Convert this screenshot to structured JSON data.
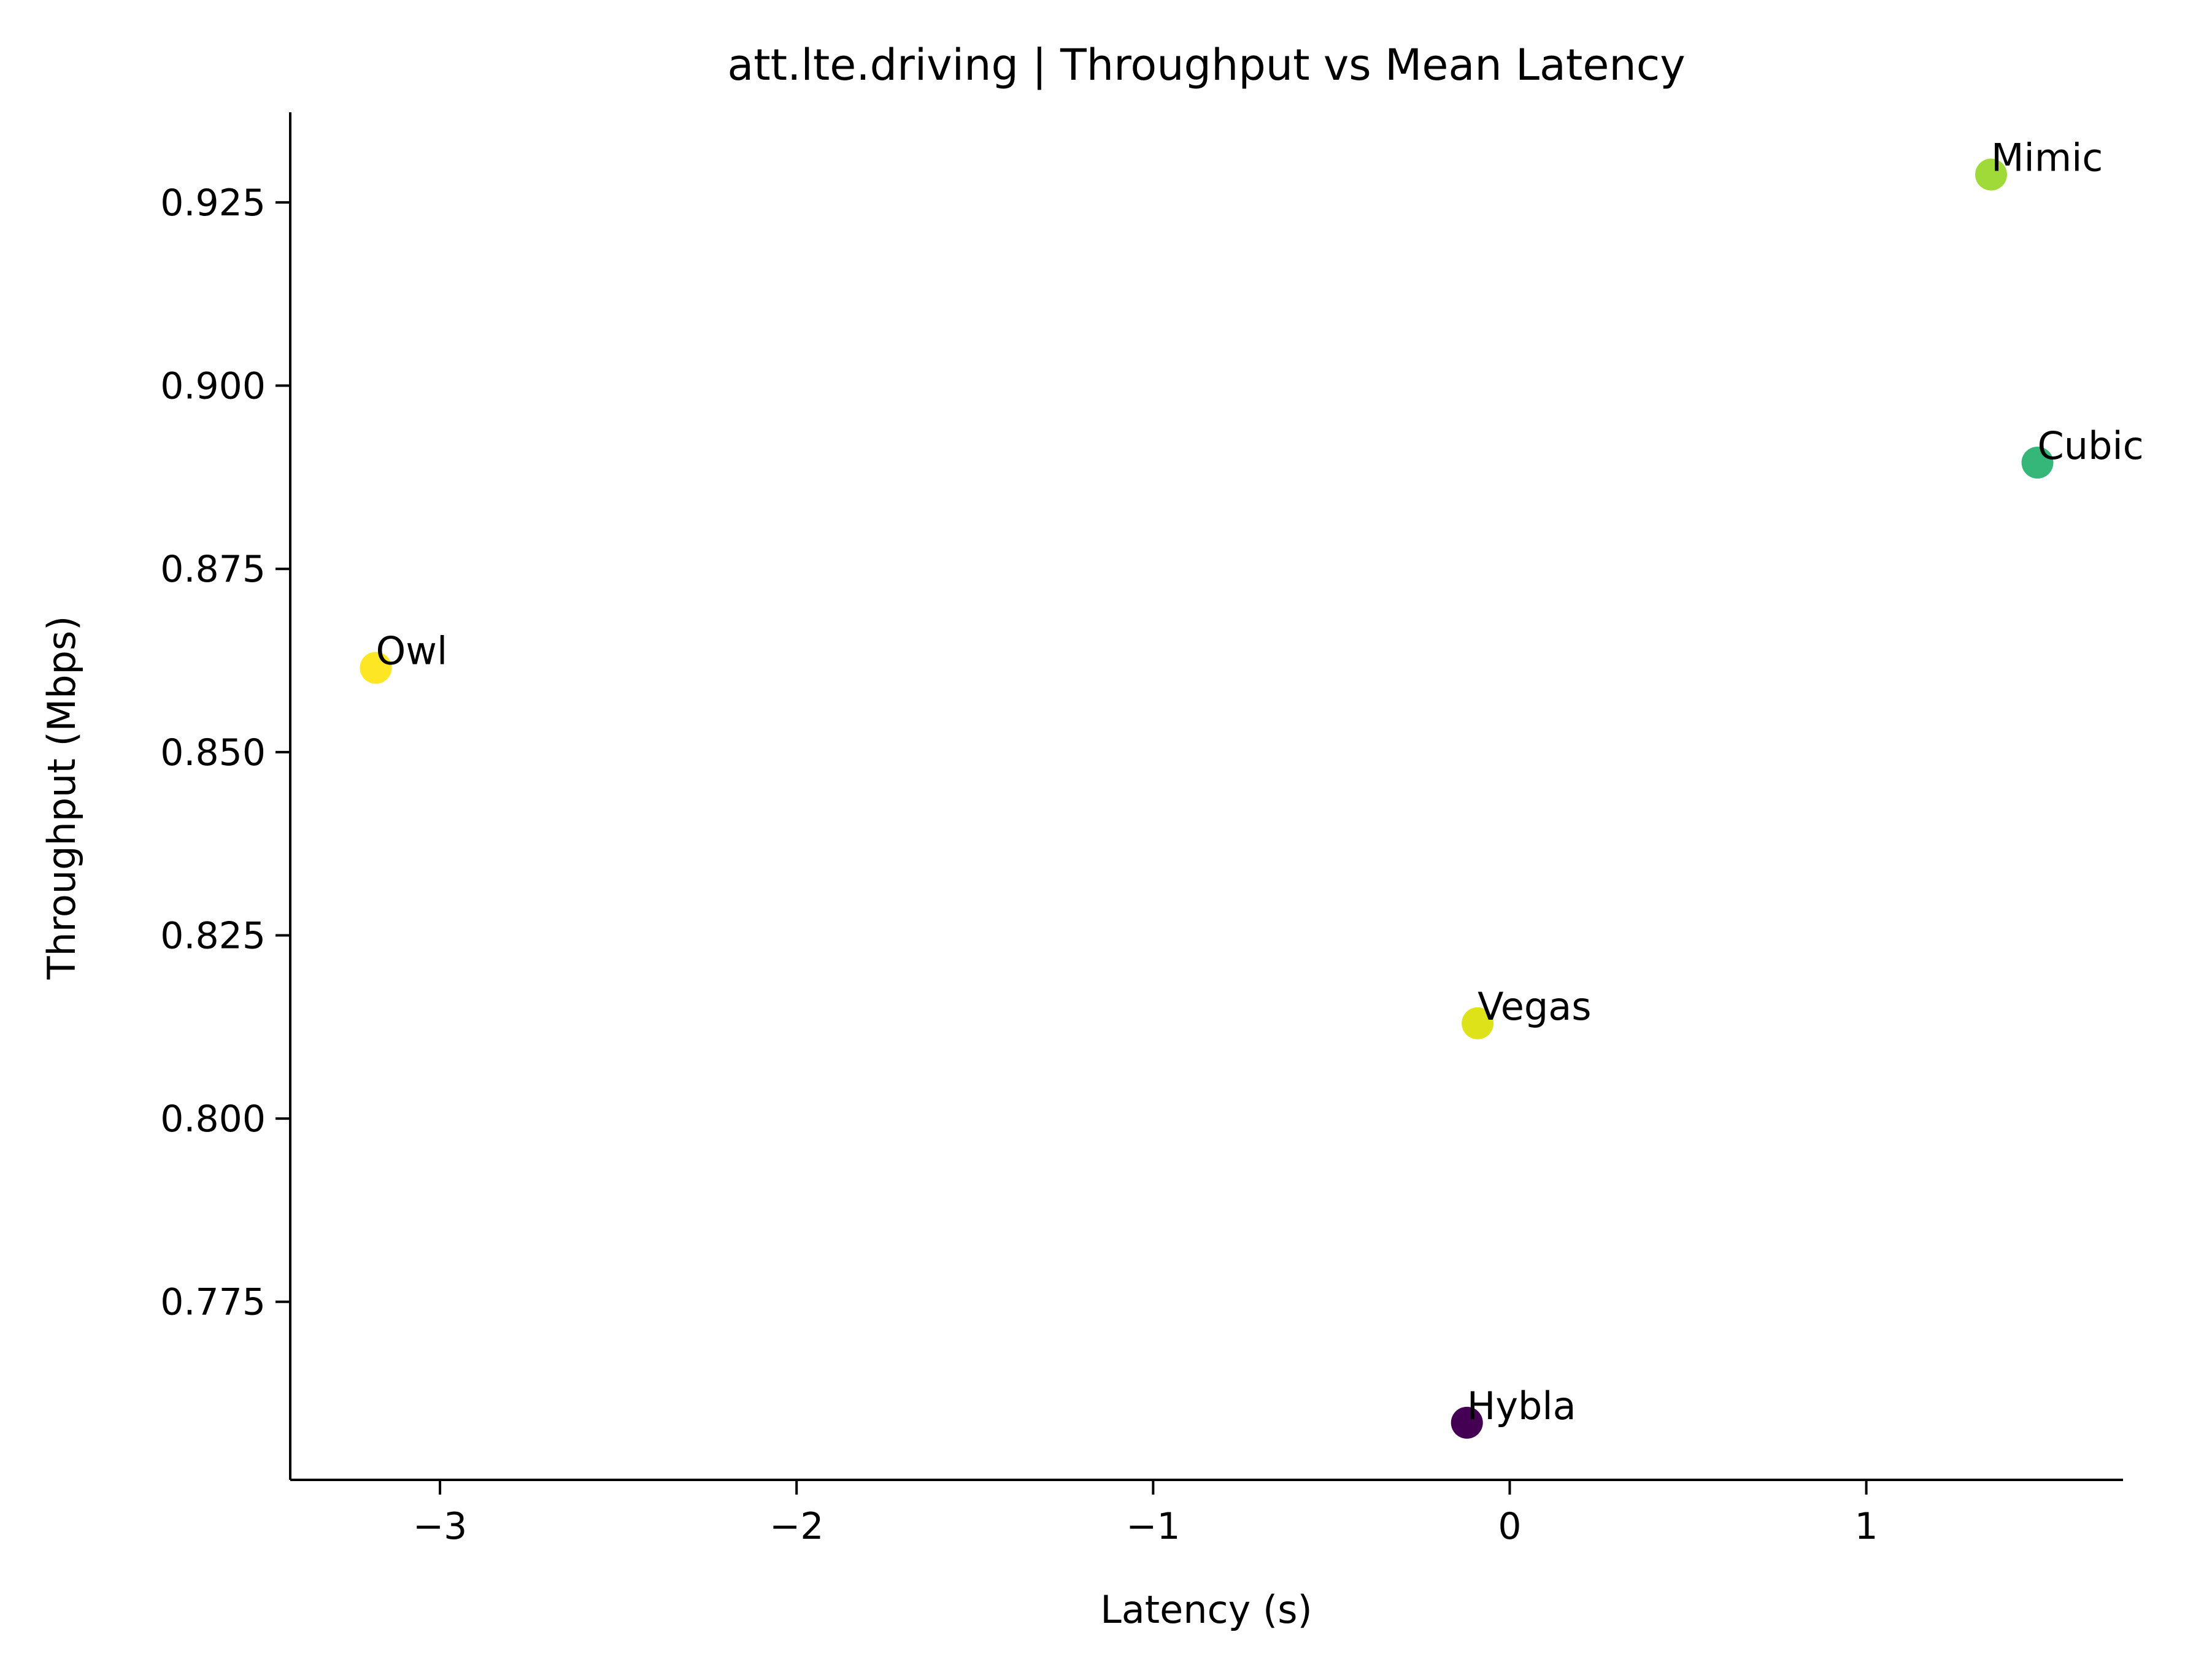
{
  "chart_data": {
    "type": "scatter",
    "title": "att.lte.driving | Throughput vs Mean Latency",
    "xlabel": "Latency (s)",
    "ylabel": "Throughput (Mbps)",
    "xlim": [
      -3.42,
      1.72
    ],
    "ylim": [
      0.7507,
      0.9373
    ],
    "xticks": [
      {
        "value": -3,
        "label": "−3"
      },
      {
        "value": -2,
        "label": "−2"
      },
      {
        "value": -1,
        "label": "−1"
      },
      {
        "value": 0,
        "label": "0"
      },
      {
        "value": 1,
        "label": "1"
      }
    ],
    "yticks": [
      {
        "value": 0.775,
        "label": "0.775"
      },
      {
        "value": 0.8,
        "label": "0.800"
      },
      {
        "value": 0.825,
        "label": "0.825"
      },
      {
        "value": 0.85,
        "label": "0.850"
      },
      {
        "value": 0.875,
        "label": "0.875"
      },
      {
        "value": 0.9,
        "label": "0.900"
      },
      {
        "value": 0.925,
        "label": "0.925"
      }
    ],
    "grid": false,
    "points": [
      {
        "label": "Hybla",
        "x": -0.12,
        "y": 0.7585,
        "color": "#440154"
      },
      {
        "label": "Cubic",
        "x": 1.48,
        "y": 0.8895,
        "color": "#35b779"
      },
      {
        "label": "Mimic",
        "x": 1.35,
        "y": 0.9288,
        "color": "#a0da39"
      },
      {
        "label": "Vegas",
        "x": -0.09,
        "y": 0.813,
        "color": "#dde318"
      },
      {
        "label": "Owl",
        "x": -3.18,
        "y": 0.8615,
        "color": "#fde725"
      }
    ]
  }
}
